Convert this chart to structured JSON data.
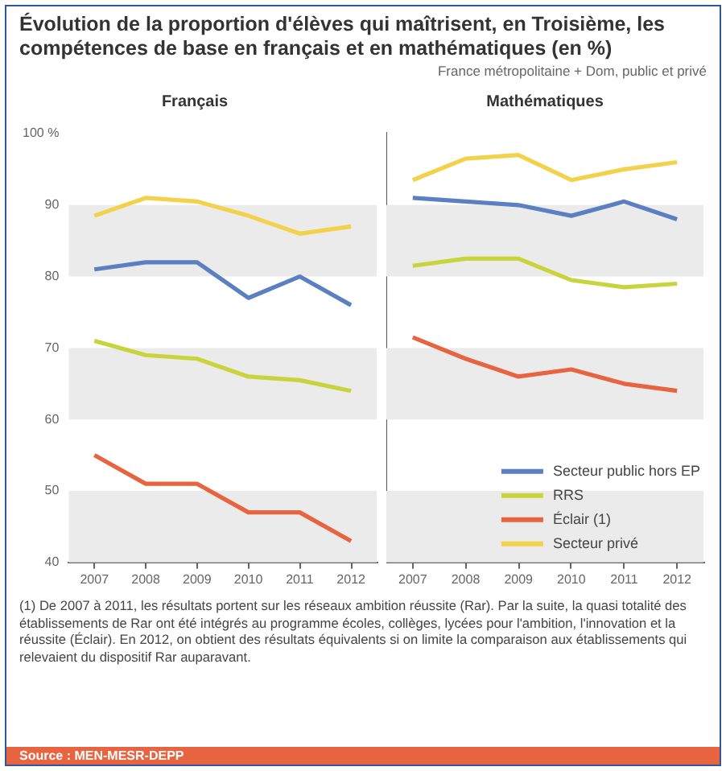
{
  "chart_data": [
    {
      "type": "other",
      "title": "Évolution de la proportion d'élèves qui maîtrisent, en Troisième, les compétences de base en français et en mathématiques (en %)",
      "subtitle": "France métropolitaine + Dom, public et privé",
      "annotations": [
        "(1) De 2007 à 2011, les résultats portent sur les réseaux ambition réussite (Rar). Par la suite, la quasi totalité des établissements de Rar ont été intégrés au programme écoles, collèges, lycées pour l'ambition, l'innovation et la réussite (Éclair). En 2012, on obtient des résultats équivalents si on limite la comparaison aux établissements qui relevaient du dispositif Rar auparavant.",
        "Source : MEN-MESR-DEPP"
      ]
    },
    {
      "type": "line",
      "title": "Français",
      "categories": [
        "2007",
        "2008",
        "2009",
        "2010",
        "2011",
        "2012"
      ],
      "series": [
        {
          "color": "#5b7fc0",
          "values": [
            81,
            82,
            82,
            77,
            80,
            76
          ]
        },
        {
          "color": "#c8d43c",
          "values": [
            71,
            69,
            68.5,
            66,
            65.5,
            64
          ]
        },
        {
          "color": "#e8633f",
          "values": [
            55,
            51,
            51,
            47,
            47,
            43
          ]
        },
        {
          "color": "#f2d24a",
          "values": [
            88.5,
            91,
            90.5,
            88.5,
            86,
            87
          ]
        }
      ],
      "ylim": [
        40,
        100
      ],
      "yticks": [
        40,
        50,
        60,
        70,
        80,
        90,
        {
          "value": 100,
          "label": "100 %"
        }
      ],
      "bands": [
        {
          "axis": "y",
          "from": 40,
          "to": 50,
          "color": "#ebebeb"
        },
        {
          "axis": "y",
          "from": 60,
          "to": 70,
          "color": "#ebebeb"
        },
        {
          "axis": "y",
          "from": 80,
          "to": 90,
          "color": "#ebebeb"
        }
      ],
      "grid": false,
      "legend": false
    },
    {
      "type": "line",
      "title": "Mathématiques",
      "categories": [
        "2007",
        "2008",
        "2009",
        "2010",
        "2011",
        "2012"
      ],
      "series": [
        {
          "name": "Secteur public hors EP",
          "color": "#5b7fc0",
          "values": [
            91,
            90.5,
            90,
            88.5,
            90.5,
            88
          ]
        },
        {
          "name": "RRS",
          "color": "#c8d43c",
          "values": [
            81.5,
            82.5,
            82.5,
            79.5,
            78.5,
            79
          ]
        },
        {
          "name": "Éclair (1)",
          "color": "#e8633f",
          "values": [
            71.5,
            68.5,
            66,
            67,
            65,
            64
          ]
        },
        {
          "name": "Secteur privé",
          "color": "#f2d24a",
          "values": [
            93.5,
            96.5,
            97,
            93.5,
            95,
            96
          ]
        }
      ],
      "ylim": [
        40,
        100
      ],
      "yticks": [
        40,
        50,
        60,
        70,
        80,
        90,
        100
      ],
      "bands": [
        {
          "axis": "y",
          "from": 40,
          "to": 50,
          "color": "#ebebeb"
        },
        {
          "axis": "y",
          "from": 60,
          "to": 70,
          "color": "#ebebeb"
        },
        {
          "axis": "y",
          "from": 80,
          "to": 90,
          "color": "#ebebeb"
        }
      ],
      "grid": false,
      "legend": "bottom right",
      "tick_labels": "x"
    }
  ]
}
